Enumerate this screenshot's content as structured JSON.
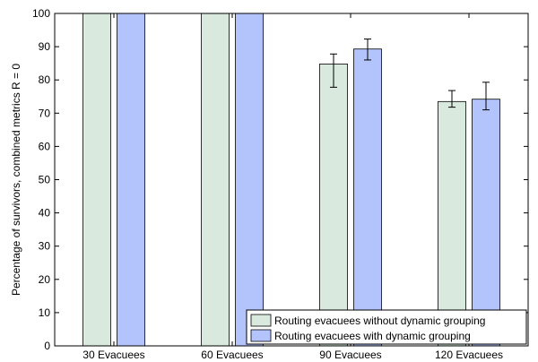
{
  "chart_data": {
    "type": "bar",
    "title": "",
    "xlabel": "",
    "ylabel": "Percentage of survivors, combined metrics R = 0",
    "ylim": [
      0,
      100
    ],
    "yticks": [
      0,
      10,
      20,
      30,
      40,
      50,
      60,
      70,
      80,
      90,
      100
    ],
    "grid": false,
    "legend_position": "bottom-right",
    "categories": [
      "30 Evacuees",
      "60 Evacuees",
      "90 Evacuees",
      "120 Evacuees"
    ],
    "series": [
      {
        "name": "Routing evacuees without dynamic grouping",
        "color": "#d9e9dd",
        "values": [
          100,
          100,
          84.8,
          73.5
        ],
        "error_low": [
          null,
          null,
          77.8,
          71.8
        ],
        "error_high": [
          null,
          null,
          87.8,
          76.8
        ]
      },
      {
        "name": "Routing evacuees with dynamic grouping",
        "color": "#b3c3fb",
        "values": [
          100,
          100,
          89.3,
          74.2
        ],
        "error_low": [
          null,
          null,
          86.0,
          71.0
        ],
        "error_high": [
          null,
          null,
          92.3,
          79.3
        ]
      }
    ]
  }
}
